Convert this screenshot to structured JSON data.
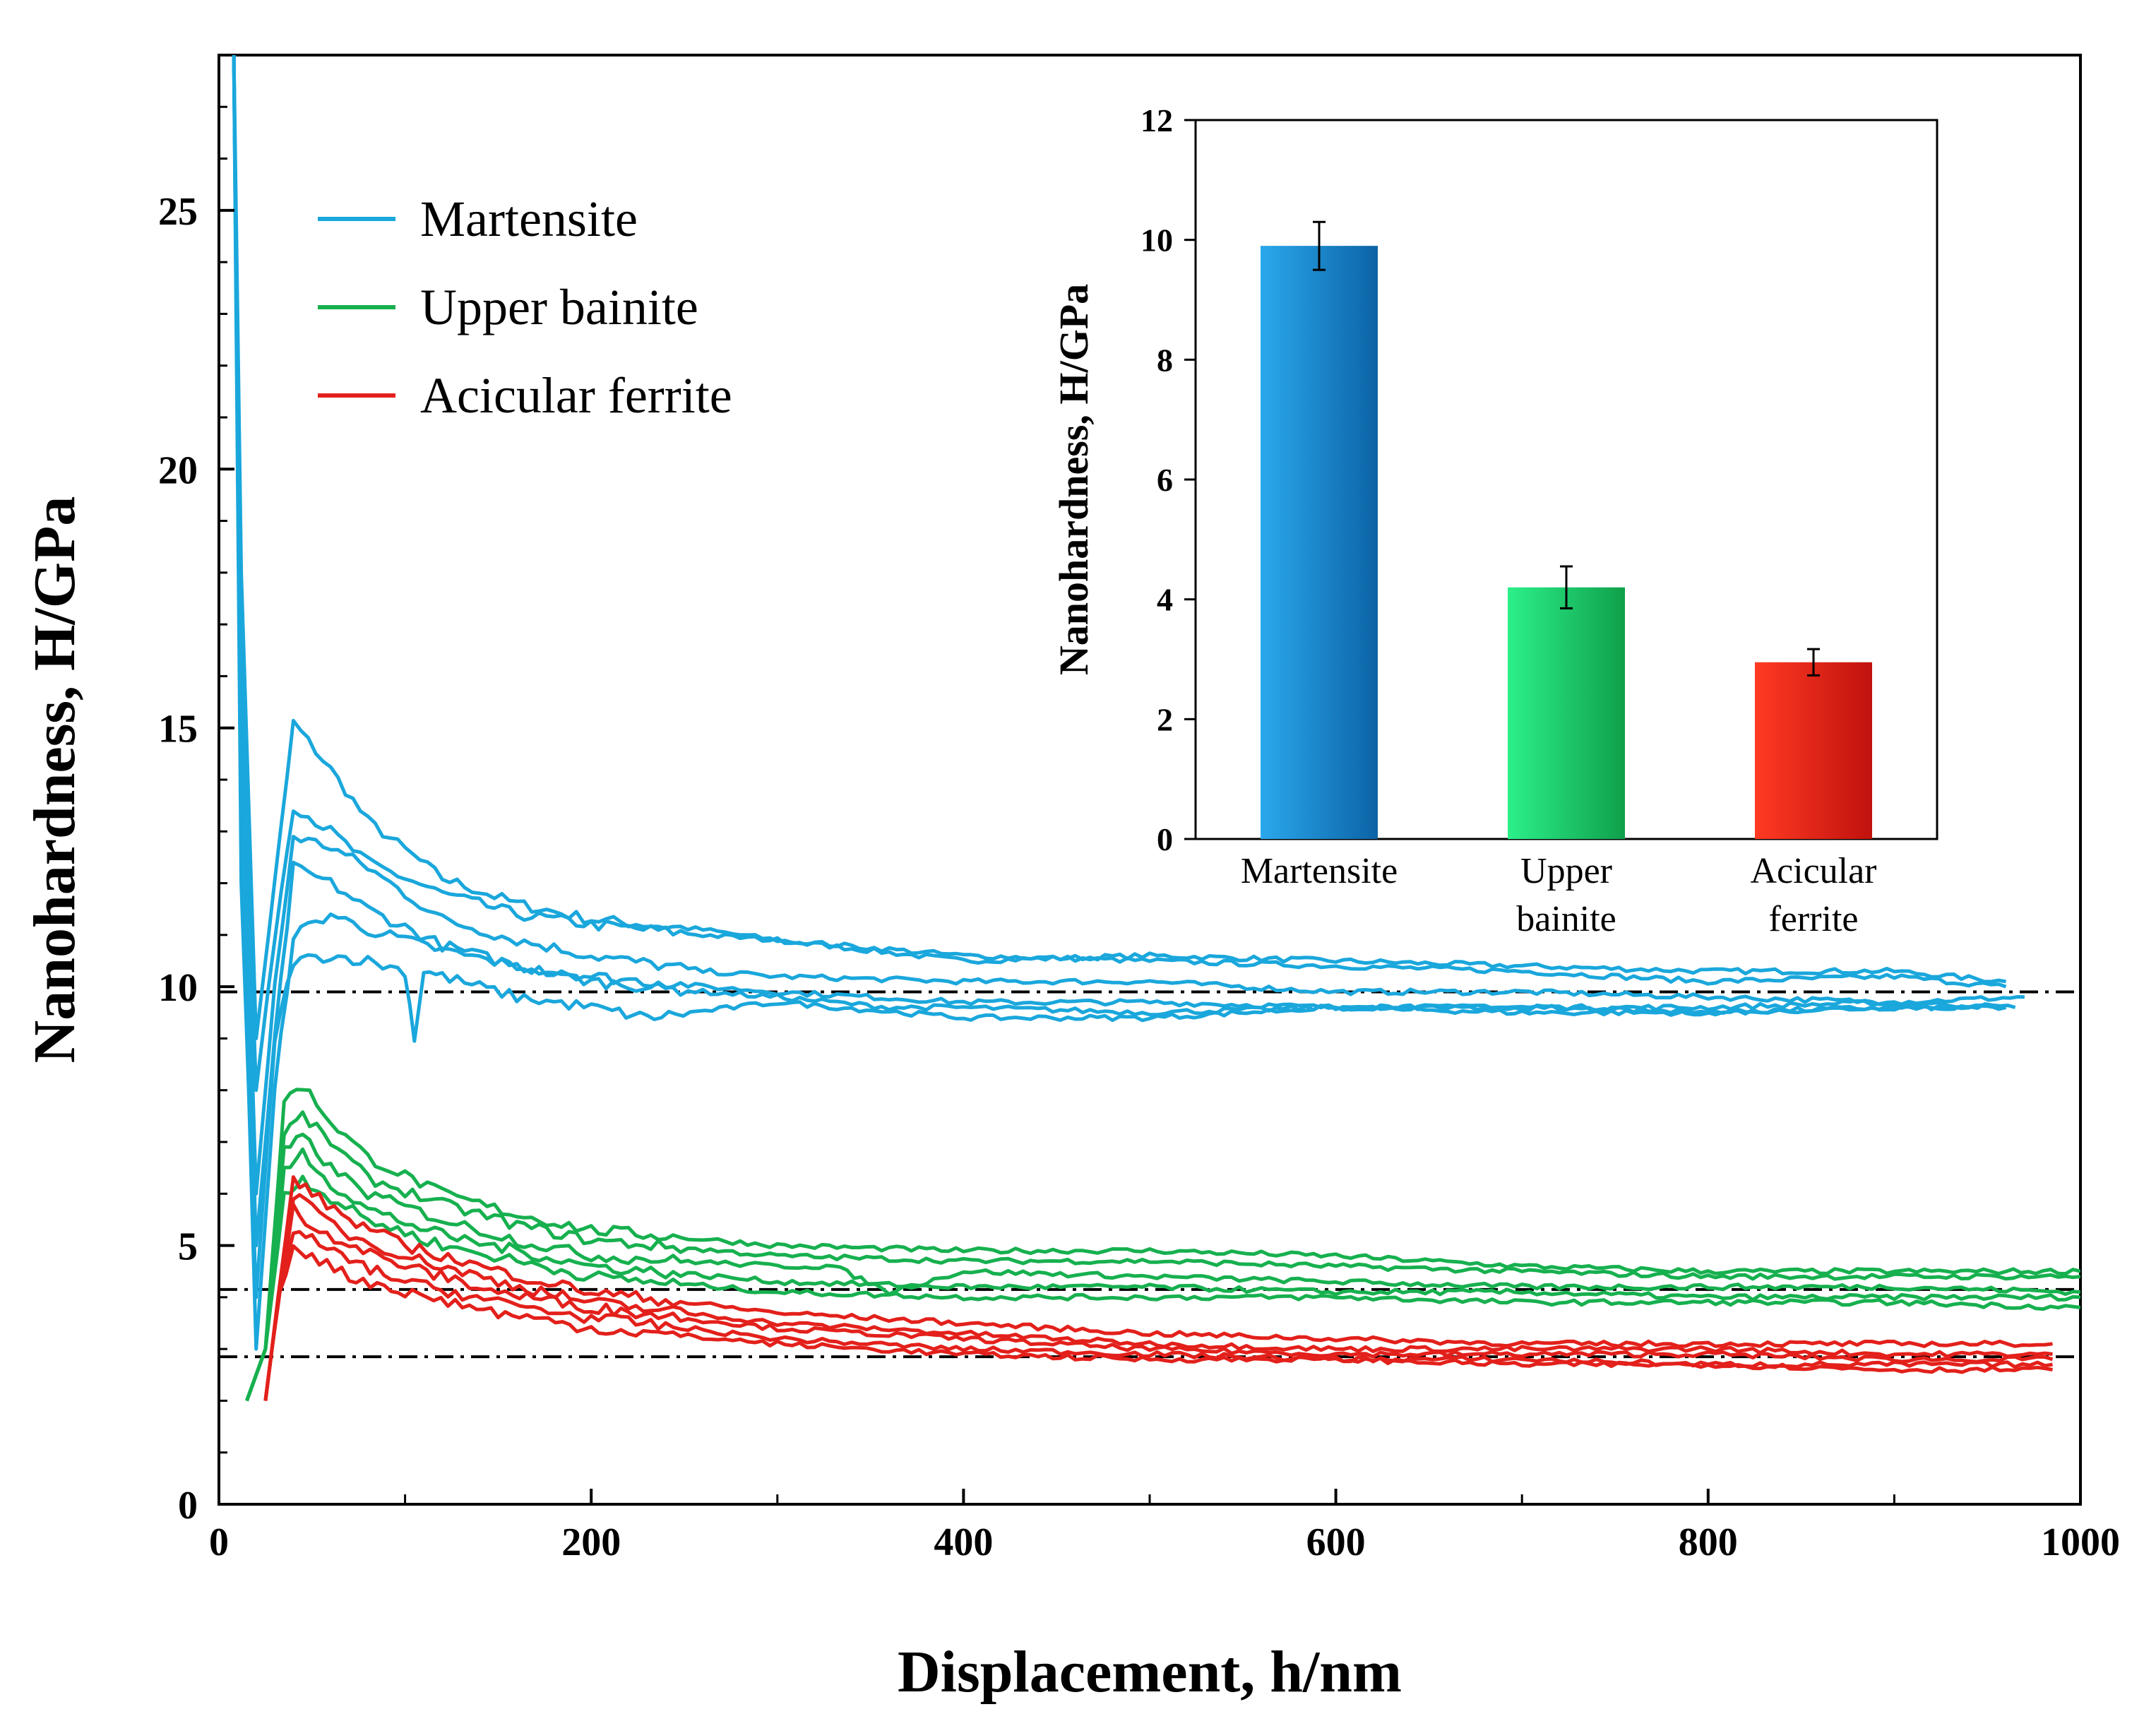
{
  "chart_data": [
    {
      "type": "line",
      "xlabel": "Displacement, h/nm",
      "ylabel": "Nanohardness, H/GPa",
      "xlim": [
        0,
        1000
      ],
      "ylim": [
        0,
        28
      ],
      "x_ticks": [
        "0",
        "200",
        "400",
        "600",
        "800",
        "1000"
      ],
      "y_ticks": [
        "0",
        "5",
        "10",
        "15",
        "20",
        "25"
      ],
      "legend_position": "top-left",
      "reference_lines": [
        9.9,
        4.15,
        2.85
      ],
      "series": [
        {
          "name": "Martensite",
          "color": "#1aa7dc",
          "curves": [
            {
              "x": [
                8,
                12,
                20,
                30,
                40,
                60,
                80,
                120,
                160,
                200,
                260,
                300,
                400,
                500,
                600,
                700,
                800,
                900,
                960
              ],
              "y": [
                28,
                18,
                9,
                12,
                15.1,
                14.2,
                13.2,
                12.1,
                11.6,
                11.3,
                11.1,
                10.9,
                10.5,
                10.6,
                10.5,
                10.4,
                10.3,
                10.3,
                10.1
              ]
            },
            {
              "x": [
                8,
                12,
                20,
                30,
                40,
                60,
                80,
                120,
                160,
                200,
                260,
                300,
                400,
                500,
                600,
                700,
                800,
                900,
                960
              ],
              "y": [
                28,
                16,
                8,
                11,
                13.5,
                13,
                12.4,
                11.8,
                11.4,
                11.2,
                11,
                10.9,
                10.6,
                10.5,
                10.4,
                10.3,
                10.1,
                10.2,
                10
              ]
            },
            {
              "x": [
                8,
                12,
                20,
                30,
                40,
                60,
                80,
                120,
                160,
                200,
                260,
                300,
                400,
                500,
                600,
                700,
                800,
                900,
                970
              ],
              "y": [
                28,
                15,
                6,
                10,
                12.9,
                12.7,
                12.3,
                11.3,
                10.9,
                10.6,
                10.3,
                10.2,
                10.1,
                10.1,
                9.9,
                9.9,
                9.8,
                9.7,
                9.8
              ]
            },
            {
              "x": [
                8,
                12,
                20,
                30,
                40,
                60,
                80,
                120,
                160,
                200,
                260,
                300,
                400,
                500,
                600,
                700,
                800,
                900,
                965
              ],
              "y": [
                28,
                14,
                5,
                9,
                12.3,
                12,
                11.5,
                10.8,
                10.4,
                10.2,
                10,
                9.9,
                9.7,
                9.7,
                9.6,
                9.6,
                9.6,
                9.7,
                9.6
              ]
            },
            {
              "x": [
                8,
                12,
                20,
                30,
                40,
                60,
                80,
                120,
                160,
                200,
                260,
                300,
                360,
                400,
                500,
                600,
                700,
                800,
                900,
                960
              ],
              "y": [
                28,
                13,
                3,
                8,
                11,
                11.4,
                11.1,
                10.7,
                10.4,
                10.1,
                9.9,
                9.8,
                9.6,
                9.6,
                9.5,
                9.6,
                9.5,
                9.5,
                9.6,
                9.6
              ]
            },
            {
              "x": [
                8,
                12,
                20,
                30,
                40,
                60,
                80,
                100,
                105,
                110,
                120,
                160,
                200,
                230,
                300,
                400,
                500,
                600,
                700,
                800,
                900,
                960
              ],
              "y": [
                28,
                12,
                4,
                9,
                10.5,
                10.6,
                10.5,
                10.3,
                9,
                10.3,
                10.2,
                9.8,
                9.6,
                9.4,
                9.7,
                9.4,
                9.4,
                9.6,
                9.6,
                9.5,
                9.6,
                9.6
              ]
            }
          ]
        },
        {
          "name": "Upper bainite",
          "color": "#17b04f",
          "curves": [
            {
              "x": [
                15,
                25,
                35,
                45,
                60,
                80,
                120,
                160,
                200,
                300,
                400,
                500,
                600,
                700,
                800,
                900,
                1000
              ],
              "y": [
                2,
                3,
                7.8,
                8.1,
                7.4,
                6.7,
                6,
                5.6,
                5.3,
                5,
                4.9,
                4.9,
                4.8,
                4.6,
                4.5,
                4.5,
                4.5
              ]
            },
            {
              "x": [
                15,
                25,
                35,
                45,
                60,
                80,
                120,
                160,
                200,
                300,
                400,
                500,
                600,
                700,
                800,
                900,
                1000
              ],
              "y": [
                2,
                3,
                7.2,
                7.5,
                7,
                6.3,
                5.8,
                5.4,
                5.1,
                4.8,
                4.7,
                4.7,
                4.6,
                4.5,
                4.4,
                4.4,
                4.4
              ]
            },
            {
              "x": [
                15,
                25,
                35,
                45,
                60,
                80,
                120,
                160,
                200,
                300,
                330,
                360,
                400,
                500,
                600,
                700,
                800,
                900,
                1000
              ],
              "y": [
                2,
                3,
                6.8,
                7.1,
                6.5,
                6,
                5.5,
                5.1,
                4.8,
                4.6,
                4.6,
                4.1,
                4.5,
                4.4,
                4.3,
                4.2,
                4.2,
                4.2,
                4.1
              ]
            },
            {
              "x": [
                15,
                25,
                35,
                45,
                60,
                80,
                120,
                160,
                200,
                300,
                400,
                500,
                600,
                700,
                800,
                900,
                1000
              ],
              "y": [
                2,
                3,
                6.4,
                6.8,
                6.2,
                5.7,
                5.2,
                4.9,
                4.6,
                4.3,
                4.2,
                4.2,
                4.1,
                4.1,
                4,
                4,
                4
              ]
            },
            {
              "x": [
                15,
                25,
                35,
                45,
                60,
                80,
                120,
                160,
                200,
                300,
                400,
                500,
                600,
                700,
                800,
                900,
                1000
              ],
              "y": [
                2,
                3,
                6,
                6.3,
                5.9,
                5.5,
                5,
                4.7,
                4.4,
                4.1,
                4,
                4,
                4,
                3.9,
                3.9,
                3.9,
                3.8
              ]
            }
          ]
        },
        {
          "name": "Acicular ferrite",
          "color": "#e3201b",
          "curves": [
            {
              "x": [
                25,
                32,
                40,
                50,
                70,
                100,
                150,
                200,
                300,
                400,
                500,
                600,
                700,
                800,
                900,
                985
              ],
              "y": [
                2,
                4,
                6.3,
                6,
                5.5,
                5,
                4.5,
                4.1,
                3.7,
                3.5,
                3.3,
                3.2,
                3.1,
                3.1,
                3.1,
                3.1
              ]
            },
            {
              "x": [
                25,
                32,
                40,
                50,
                70,
                100,
                150,
                200,
                300,
                400,
                500,
                600,
                700,
                800,
                900,
                985
              ],
              "y": [
                2,
                4,
                6,
                5.7,
                5.2,
                4.8,
                4.3,
                3.9,
                3.5,
                3.3,
                3.1,
                3,
                3,
                3,
                2.9,
                2.9
              ]
            },
            {
              "x": [
                25,
                32,
                40,
                50,
                70,
                100,
                150,
                200,
                300,
                400,
                500,
                600,
                700,
                800,
                900,
                985
              ],
              "y": [
                2,
                4,
                5.7,
                5.4,
                5,
                4.6,
                4.1,
                3.8,
                3.4,
                3.2,
                3,
                2.9,
                2.9,
                2.9,
                2.8,
                2.8
              ]
            },
            {
              "x": [
                25,
                32,
                40,
                50,
                70,
                100,
                150,
                200,
                300,
                400,
                500,
                600,
                700,
                800,
                900,
                985
              ],
              "y": [
                2,
                4,
                5.3,
                5.1,
                4.7,
                4.3,
                3.9,
                3.6,
                3.2,
                3,
                2.9,
                2.8,
                2.8,
                2.7,
                2.7,
                2.7
              ]
            },
            {
              "x": [
                25,
                32,
                40,
                50,
                70,
                100,
                150,
                200,
                300,
                400,
                500,
                600,
                700,
                800,
                900,
                985
              ],
              "y": [
                2,
                4,
                5,
                4.8,
                4.4,
                4.1,
                3.7,
                3.4,
                3.1,
                2.9,
                2.8,
                2.8,
                2.7,
                2.7,
                2.6,
                2.6
              ]
            }
          ]
        }
      ]
    },
    {
      "type": "bar",
      "ylabel": "Nanohardness, H/GPa",
      "ylim": [
        0,
        12
      ],
      "y_ticks": [
        "0",
        "2",
        "4",
        "6",
        "8",
        "10",
        "12"
      ],
      "categories": [
        [
          "Martensite"
        ],
        [
          "Upper",
          "bainite"
        ],
        [
          "Acicular",
          "ferrite"
        ]
      ],
      "values": [
        9.9,
        4.2,
        2.95
      ],
      "errors": [
        0.4,
        0.35,
        0.22
      ],
      "colors": [
        "#1487cf",
        "#17c160",
        "#e8281c"
      ]
    }
  ]
}
